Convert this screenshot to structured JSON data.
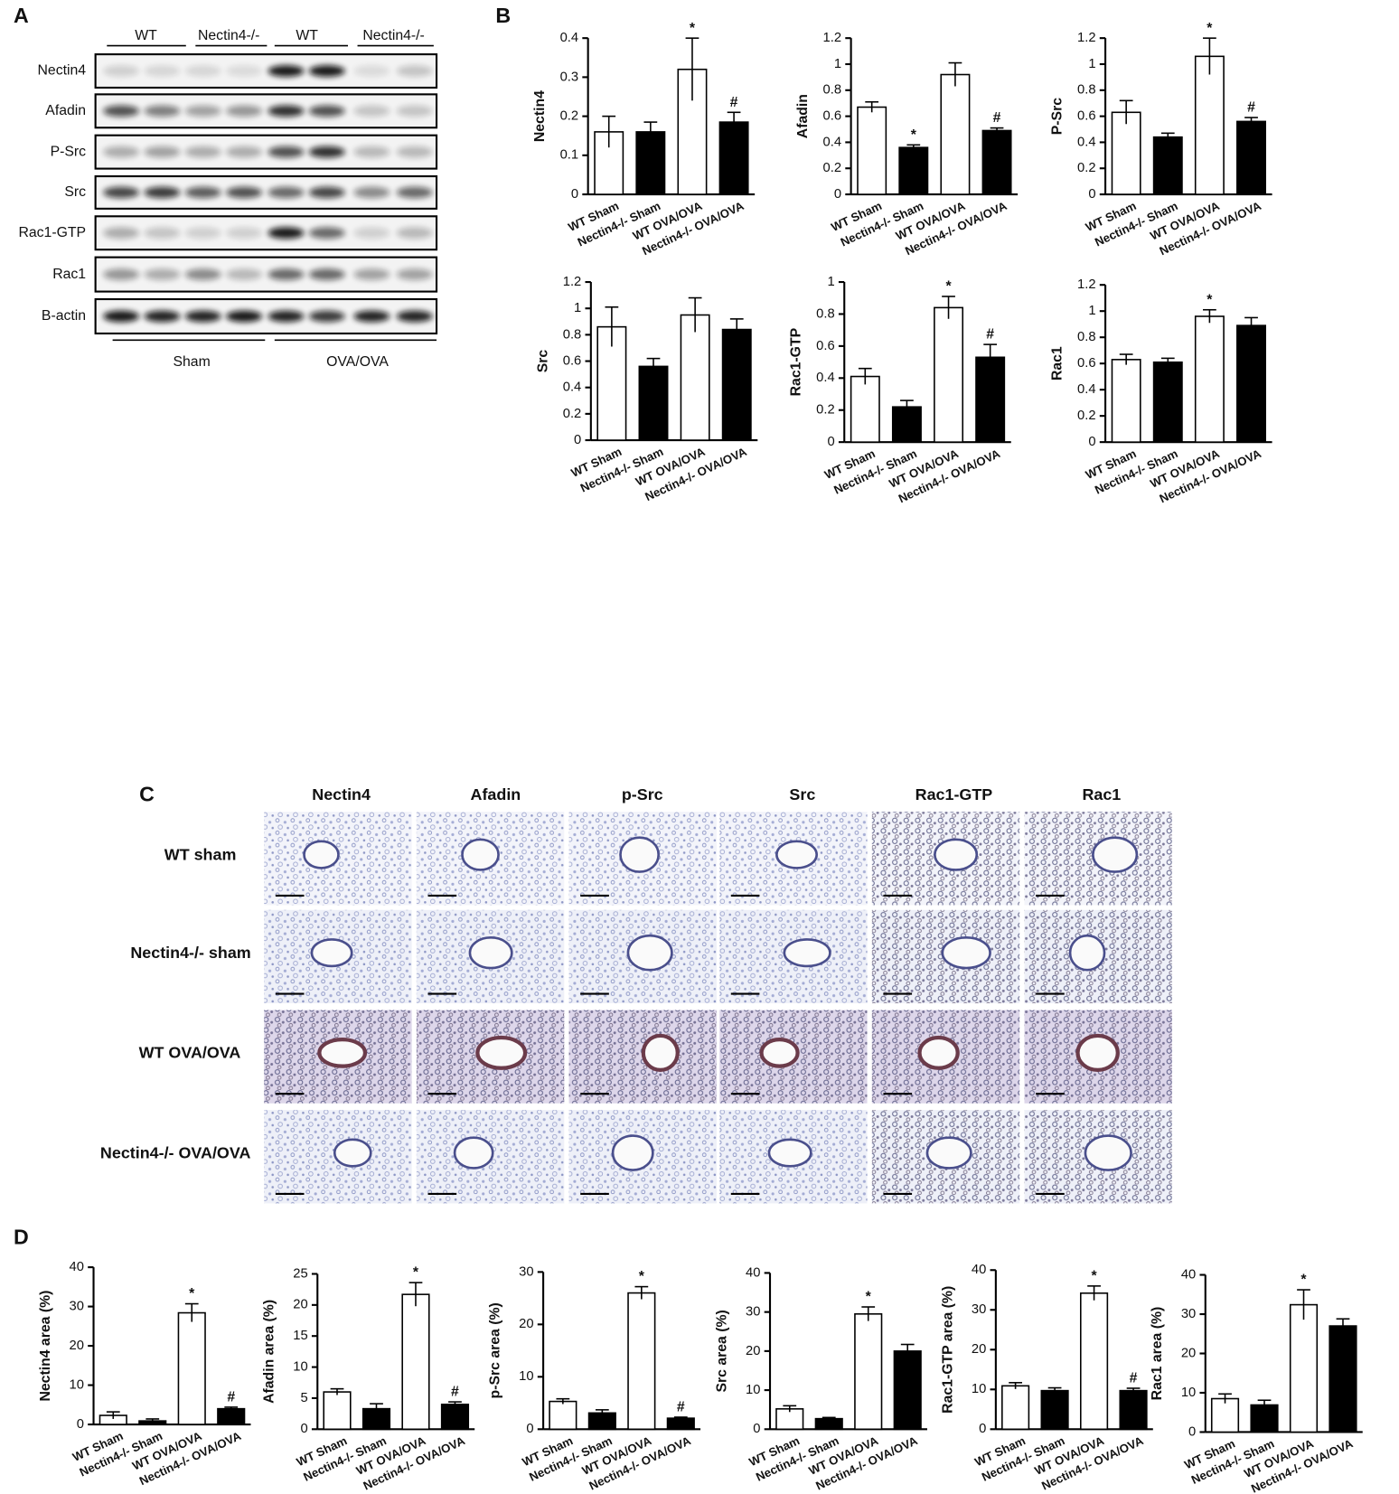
{
  "panels": {
    "a": "A",
    "b": "B",
    "c": "C",
    "d": "D"
  },
  "blot": {
    "top_groups": [
      "WT",
      "Nectin4-/-",
      "WT",
      "Nectin4-/-"
    ],
    "rows": [
      "Nectin4",
      "Afadin",
      "P-Src",
      "Src",
      "Rac1-GTP",
      "Rac1",
      "B-actin"
    ],
    "bottom_groups": [
      "Sham",
      "OVA/OVA"
    ]
  },
  "histology": {
    "columns": [
      "Nectin4",
      "Afadin",
      "p-Src",
      "Src",
      "Rac1-GTP",
      "Rac1"
    ],
    "rows": [
      "WT sham",
      "Nectin4-/- sham",
      "WT OVA/OVA",
      "Nectin4-/- OVA/OVA"
    ]
  },
  "chart_data": [
    {
      "type": "bar",
      "ylabel": "Nectin4",
      "categories": [
        "WT Sham",
        "Nectin4-/- Sham",
        "WT OVA/OVA",
        "Nectin4-/- OVA/OVA"
      ],
      "values": [
        0.16,
        0.16,
        0.32,
        0.185
      ],
      "errors": [
        0.04,
        0.025,
        0.08,
        0.025
      ],
      "annotations": [
        null,
        null,
        "*",
        "#"
      ],
      "colors": [
        "#ffffff",
        "#000000",
        "#ffffff",
        "#000000"
      ],
      "ylim": [
        0,
        0.4
      ],
      "yticks": [
        0,
        0.1,
        0.2,
        0.3,
        0.4
      ]
    },
    {
      "type": "bar",
      "ylabel": "Afadin",
      "categories": [
        "WT Sham",
        "Nectin4-/- Sham",
        "WT OVA/OVA",
        "Nectin4-/- OVA/OVA"
      ],
      "values": [
        0.67,
        0.36,
        0.92,
        0.49
      ],
      "errors": [
        0.04,
        0.02,
        0.09,
        0.02
      ],
      "annotations": [
        null,
        "*",
        null,
        "#"
      ],
      "colors": [
        "#ffffff",
        "#000000",
        "#ffffff",
        "#000000"
      ],
      "ylim": [
        0,
        1.2
      ],
      "yticks": [
        0,
        0.2,
        0.4,
        0.6,
        0.8,
        1,
        1.2
      ]
    },
    {
      "type": "bar",
      "ylabel": "P-Src",
      "categories": [
        "WT Sham",
        "Nectin4-/- Sham",
        "WT OVA/OVA",
        "Nectin4-/- OVA/OVA"
      ],
      "values": [
        0.63,
        0.44,
        1.06,
        0.56
      ],
      "errors": [
        0.09,
        0.03,
        0.14,
        0.03
      ],
      "annotations": [
        null,
        null,
        "*",
        "#"
      ],
      "colors": [
        "#ffffff",
        "#000000",
        "#ffffff",
        "#000000"
      ],
      "ylim": [
        0,
        1.2
      ],
      "yticks": [
        0,
        0.2,
        0.4,
        0.6,
        0.8,
        1,
        1.2
      ]
    },
    {
      "type": "bar",
      "ylabel": "Src",
      "categories": [
        "WT Sham",
        "Nectin4-/- Sham",
        "WT OVA/OVA",
        "Nectin4-/- OVA/OVA"
      ],
      "values": [
        0.86,
        0.56,
        0.95,
        0.84
      ],
      "errors": [
        0.15,
        0.06,
        0.13,
        0.08
      ],
      "annotations": [
        null,
        null,
        null,
        null
      ],
      "colors": [
        "#ffffff",
        "#000000",
        "#ffffff",
        "#000000"
      ],
      "ylim": [
        0,
        1.2
      ],
      "yticks": [
        0,
        0.2,
        0.4,
        0.6,
        0.8,
        1,
        1.2
      ]
    },
    {
      "type": "bar",
      "ylabel": "Rac1-GTP",
      "categories": [
        "WT Sham",
        "Nectin4-/- Sham",
        "WT OVA/OVA",
        "Nectin4-/- OVA/OVA"
      ],
      "values": [
        0.41,
        0.22,
        0.84,
        0.53
      ],
      "errors": [
        0.05,
        0.04,
        0.07,
        0.08
      ],
      "annotations": [
        null,
        null,
        "*",
        "#"
      ],
      "colors": [
        "#ffffff",
        "#000000",
        "#ffffff",
        "#000000"
      ],
      "ylim": [
        0,
        1
      ],
      "yticks": [
        0,
        0.2,
        0.4,
        0.6,
        0.8,
        1
      ]
    },
    {
      "type": "bar",
      "ylabel": "Rac1",
      "categories": [
        "WT Sham",
        "Nectin4-/- Sham",
        "WT OVA/OVA",
        "Nectin4-/- OVA/OVA"
      ],
      "values": [
        0.63,
        0.61,
        0.96,
        0.89
      ],
      "errors": [
        0.04,
        0.03,
        0.05,
        0.06
      ],
      "annotations": [
        null,
        null,
        "*",
        null
      ],
      "colors": [
        "#ffffff",
        "#000000",
        "#ffffff",
        "#000000"
      ],
      "ylim": [
        0,
        1.2
      ],
      "yticks": [
        0,
        0.2,
        0.4,
        0.6,
        0.8,
        1,
        1.2
      ]
    },
    {
      "type": "bar",
      "ylabel": "Nectin4 area (%)",
      "categories": [
        "WT Sham",
        "Nectin4-/- Sham",
        "WT OVA/OVA",
        "Nectin4-/- OVA/OVA"
      ],
      "values": [
        2.3,
        0.9,
        28.4,
        4.0
      ],
      "errors": [
        0.9,
        0.5,
        2.3,
        0.4
      ],
      "annotations": [
        null,
        null,
        "*",
        "#"
      ],
      "colors": [
        "#ffffff",
        "#000000",
        "#ffffff",
        "#000000"
      ],
      "ylim": [
        0,
        40
      ],
      "yticks": [
        0,
        10,
        20,
        30,
        40
      ]
    },
    {
      "type": "bar",
      "ylabel": "Afadin area (%)",
      "categories": [
        "WT Sham",
        "Nectin4-/- Sham",
        "WT OVA/OVA",
        "Nectin4-/- OVA/OVA"
      ],
      "values": [
        6.0,
        3.3,
        21.7,
        4.0
      ],
      "errors": [
        0.5,
        0.8,
        1.9,
        0.4
      ],
      "annotations": [
        null,
        null,
        "*",
        "#"
      ],
      "colors": [
        "#ffffff",
        "#000000",
        "#ffffff",
        "#000000"
      ],
      "ylim": [
        0,
        25
      ],
      "yticks": [
        0,
        5,
        10,
        15,
        20,
        25
      ]
    },
    {
      "type": "bar",
      "ylabel": "p-Src area (%)",
      "categories": [
        "WT Sham",
        "Nectin4-/- Sham",
        "WT OVA/OVA",
        "Nectin4-/- OVA/OVA"
      ],
      "values": [
        5.3,
        3.1,
        26.0,
        2.1
      ],
      "errors": [
        0.5,
        0.6,
        1.2,
        0.2
      ],
      "annotations": [
        null,
        null,
        "*",
        "#"
      ],
      "colors": [
        "#ffffff",
        "#000000",
        "#ffffff",
        "#000000"
      ],
      "ylim": [
        0,
        30
      ],
      "yticks": [
        0,
        10,
        20,
        30
      ]
    },
    {
      "type": "bar",
      "ylabel": "Src area (%)",
      "categories": [
        "WT Sham",
        "Nectin4-/- Sham",
        "WT OVA/OVA",
        "Nectin4-/- OVA/OVA"
      ],
      "values": [
        5.2,
        2.7,
        29.5,
        20.0
      ],
      "errors": [
        0.8,
        0.3,
        1.8,
        1.7
      ],
      "annotations": [
        null,
        null,
        "*",
        null
      ],
      "colors": [
        "#ffffff",
        "#000000",
        "#ffffff",
        "#000000"
      ],
      "ylim": [
        0,
        40
      ],
      "yticks": [
        0,
        10,
        20,
        30,
        40
      ]
    },
    {
      "type": "bar",
      "ylabel": "Rac1-GTP area (%)",
      "categories": [
        "WT Sham",
        "Nectin4-/- Sham",
        "WT OVA/OVA",
        "Nectin4-/- OVA/OVA"
      ],
      "values": [
        10.9,
        9.7,
        34.2,
        9.7
      ],
      "errors": [
        0.8,
        0.7,
        1.8,
        0.6
      ],
      "annotations": [
        null,
        null,
        "*",
        "#"
      ],
      "colors": [
        "#ffffff",
        "#000000",
        "#ffffff",
        "#000000"
      ],
      "ylim": [
        0,
        40
      ],
      "yticks": [
        0,
        10,
        20,
        30,
        40
      ]
    },
    {
      "type": "bar",
      "ylabel": "Rac1 area (%)",
      "categories": [
        "WT Sham",
        "Nectin4-/- Sham",
        "WT OVA/OVA",
        "Nectin4-/- OVA/OVA"
      ],
      "values": [
        8.5,
        6.9,
        32.4,
        27.0
      ],
      "errors": [
        1.2,
        1.2,
        3.8,
        1.8
      ],
      "annotations": [
        null,
        null,
        "*",
        null
      ],
      "colors": [
        "#ffffff",
        "#000000",
        "#ffffff",
        "#000000"
      ],
      "ylim": [
        0,
        40
      ],
      "yticks": [
        0,
        10,
        20,
        30,
        40
      ]
    }
  ]
}
